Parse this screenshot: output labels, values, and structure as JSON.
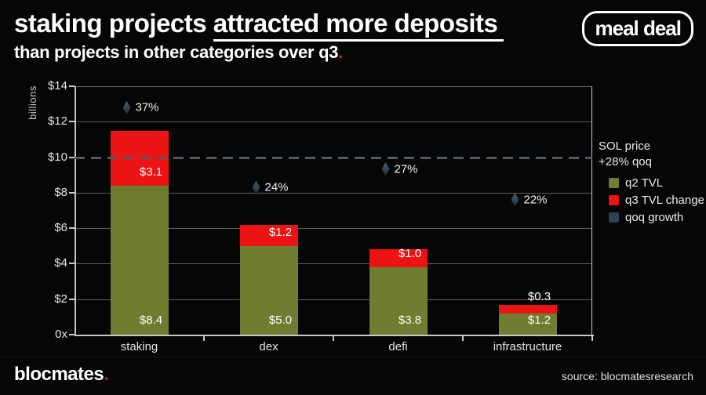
{
  "header": {
    "title_plain": "staking projects ",
    "title_underlined": "attracted more deposits",
    "subtitle": "than projects in other categories over q3",
    "subtitle_period": ".",
    "logo": "meal deal"
  },
  "chart_data": {
    "type": "bar",
    "stacked": true,
    "categories": [
      "staking",
      "dex",
      "defi",
      "infrastructure"
    ],
    "series": [
      {
        "name": "q2 TVL",
        "color": "#6e7d2f",
        "values": [
          8.4,
          5.0,
          3.8,
          1.2
        ],
        "labels": [
          "$8.4",
          "$5.0",
          "$3.8",
          "$1.2"
        ]
      },
      {
        "name": "q3 TVL change",
        "color": "#ec1313",
        "values": [
          3.1,
          1.2,
          1.0,
          0.3
        ],
        "labels": [
          "$3.1",
          "$1.2",
          "$1.0",
          "$0.3"
        ]
      }
    ],
    "qoq_markers": {
      "name": "qoq growth",
      "values_pct": [
        37,
        24,
        27,
        22
      ],
      "labels": [
        "37%",
        "24%",
        "27%",
        "22%"
      ],
      "secondary_axis_max_pct": 40.5
    },
    "ylabel": "billions",
    "ylim": [
      0,
      14
    ],
    "yticks": [
      {
        "v": 0,
        "label": "0x"
      },
      {
        "v": 2,
        "label": "$2"
      },
      {
        "v": 4,
        "label": "$4"
      },
      {
        "v": 6,
        "label": "$6"
      },
      {
        "v": 8,
        "label": "$8"
      },
      {
        "v": 10,
        "label": "$10"
      },
      {
        "v": 12,
        "label": "$12"
      },
      {
        "v": 14,
        "label": "$14"
      }
    ],
    "grid": true,
    "legend_position": "right",
    "ref_line": {
      "value": 10,
      "style": "dashed",
      "label": "SOL price\n+28% qoq"
    },
    "legend": [
      {
        "label": "q2 TVL",
        "color": "#6e7d2f"
      },
      {
        "label": "q3 TVL change",
        "color": "#ec1313"
      },
      {
        "label": "qoq growth",
        "color": "#2e4150"
      }
    ]
  },
  "footer": {
    "brand": "blocmates",
    "brand_period": ".",
    "source": "source: blocmatesresearch"
  }
}
